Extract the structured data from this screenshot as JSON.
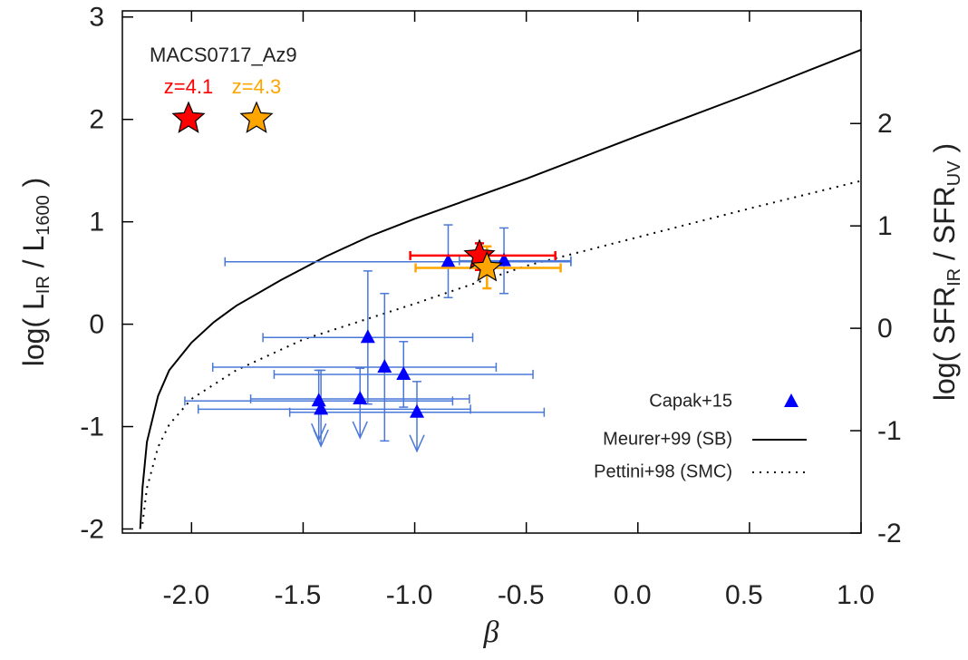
{
  "chart_data": {
    "type": "scatter",
    "xlabel": "β",
    "ylabel_parts": [
      "log( L",
      "IR",
      " / L",
      "1600",
      " )"
    ],
    "y2label_parts": [
      "log( SFR",
      "IR",
      " / SFR",
      "UV",
      " )"
    ],
    "xlim": [
      -2.31,
      1.0
    ],
    "ylim": [
      -2.04,
      3.06
    ],
    "y2lim": [
      -2.0,
      3.1
    ],
    "xticks": [
      {
        "value": -2.0,
        "label": "-2.0"
      },
      -1.5,
      {
        "value": -1.0,
        "label": "-1.0"
      },
      -0.5,
      {
        "value": 0.0,
        "label": "0.0"
      },
      0.5,
      {
        "value": 1.0,
        "label": "1.0"
      }
    ],
    "yticks": [
      -2,
      -1,
      0,
      1,
      2,
      3
    ],
    "y2ticks": [
      -2,
      -1,
      0,
      1,
      2
    ],
    "annotation": "MACS0717_Az9",
    "capak": {
      "name": "Capak+15",
      "color": "#0000ff",
      "errcolor": "#4a78d8",
      "x": [
        -0.85,
        -0.6,
        -1.21,
        -1.135,
        -1.05,
        -0.99,
        -1.245,
        -1.43,
        -1.42
      ],
      "y": [
        0.61,
        0.62,
        -0.13,
        -0.42,
        -0.49,
        -0.86,
        -0.73,
        -0.75,
        -0.83
      ],
      "xerr_minus": [
        1.0,
        0.2,
        0.47,
        0.77,
        0.58,
        0.57,
        0.49,
        0.6,
        0.55
      ],
      "xerr_plus": [
        0.55,
        0.3,
        0.47,
        0.5,
        0.58,
        0.57,
        0.49,
        0.6,
        0.67
      ],
      "yerr_minus": [
        0.35,
        0.32,
        0.65,
        0.72,
        0.32,
        0.38,
        0.38,
        0.38,
        0.36
      ],
      "yerr_plus": [
        0.36,
        0.32,
        0.65,
        0.72,
        0.32,
        0.3,
        0.3,
        0.3,
        0.38
      ],
      "upper_limit": [
        false,
        false,
        false,
        false,
        false,
        true,
        true,
        true,
        true
      ]
    },
    "az9": [
      {
        "name": "z=4.1",
        "color": "#ff0000",
        "x": -0.71,
        "y": 0.67,
        "xerr_minus": 0.31,
        "xerr_plus": 0.34,
        "yerr_minus": 0.14,
        "yerr_plus": 0.12
      },
      {
        "name": "z=4.3",
        "color": "#ffa500",
        "x": -0.676,
        "y": 0.55,
        "xerr_minus": 0.32,
        "xerr_plus": 0.33,
        "yerr_minus": 0.2,
        "yerr_plus": 0.21
      }
    ],
    "curves": [
      {
        "name": "Meurer+99 (SB)",
        "dash": "none",
        "x": [
          -2.23,
          -2.22,
          -2.2,
          -2.15,
          -2.1,
          -2.0,
          -1.9,
          -1.8,
          -1.6,
          -1.4,
          -1.2,
          -1.0,
          -0.5,
          0.0,
          0.5,
          1.0
        ],
        "y": [
          -2.0,
          -1.6,
          -1.15,
          -0.7,
          -0.45,
          -0.18,
          0.02,
          0.18,
          0.43,
          0.66,
          0.86,
          1.03,
          1.42,
          1.84,
          2.25,
          2.68
        ]
      },
      {
        "name": "Pettini+98 (SMC)",
        "dash": "2,6",
        "x": [
          -2.22,
          -2.2,
          -2.15,
          -2.1,
          -2.0,
          -1.8,
          -1.5,
          -1.0,
          -0.5,
          0.0,
          0.5,
          1.0
        ],
        "y": [
          -1.95,
          -1.6,
          -1.2,
          -0.98,
          -0.73,
          -0.45,
          -0.15,
          0.2,
          0.57,
          0.85,
          1.13,
          1.4
        ]
      }
    ]
  }
}
